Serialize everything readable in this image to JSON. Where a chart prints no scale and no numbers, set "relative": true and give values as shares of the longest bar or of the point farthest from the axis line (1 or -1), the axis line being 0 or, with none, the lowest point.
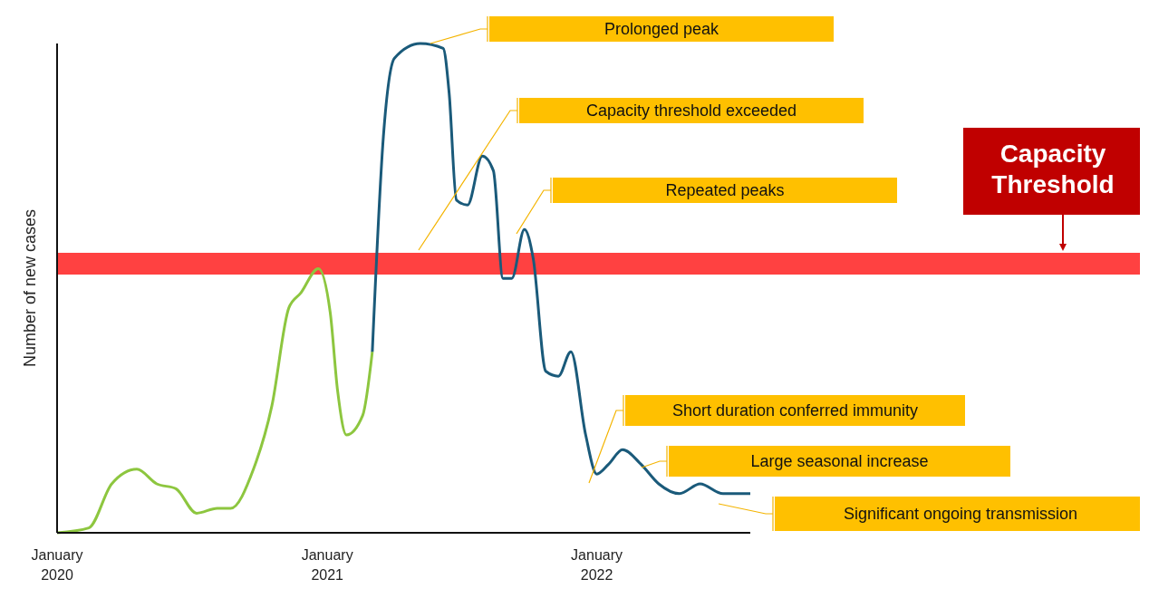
{
  "chart_data": {
    "type": "line",
    "relative": true,
    "ylabel": "Number of new cases",
    "xlim": [
      "2020-01-01",
      "2022-07-28"
    ],
    "xticks": [
      {
        "value": "2020-01-01",
        "label": "January 2020"
      },
      {
        "value": "2021-01-01",
        "label": "January 2021"
      },
      {
        "value": "2022-01-01",
        "label": "January 2022"
      }
    ],
    "series": [
      {
        "color": "#8dc63f",
        "x": [
          "2020-01-01",
          "2020-02-13",
          "2020-03-15",
          "2020-04-18",
          "2020-05-15",
          "2020-06-10",
          "2020-07-08",
          "2020-08-05",
          "2020-08-23",
          "2020-09-23",
          "2020-10-18",
          "2020-11-10",
          "2020-11-26",
          "2020-12-20",
          "2021-01-05",
          "2021-01-15",
          "2021-01-27",
          "2021-02-18",
          "2021-03-03"
        ],
        "values": [
          0,
          0.01,
          0.1,
          0.13,
          0.1,
          0.09,
          0.04,
          0.05,
          0.05,
          0.13,
          0.26,
          0.46,
          0.49,
          0.54,
          0.45,
          0.29,
          0.2,
          0.24,
          0.37
        ]
      },
      {
        "color": "#1a5a7a",
        "x": [
          "2021-03-03",
          "2021-03-18",
          "2021-04-02",
          "2021-05-07",
          "2021-06-07",
          "2021-06-15",
          "2021-06-25",
          "2021-07-10",
          "2021-07-30",
          "2021-08-14",
          "2021-08-27",
          "2021-09-08",
          "2021-09-25",
          "2021-10-07",
          "2021-10-24",
          "2021-11-10",
          "2021-11-27",
          "2021-12-17",
          "2022-01-01",
          "2022-01-17",
          "2022-02-05",
          "2022-03-02",
          "2022-03-26",
          "2022-04-23",
          "2022-05-21",
          "2022-06-21",
          "2022-07-28"
        ],
        "values": [
          0.37,
          0.81,
          0.97,
          1,
          0.99,
          0.9,
          0.68,
          0.67,
          0.77,
          0.74,
          0.52,
          0.52,
          0.62,
          0.56,
          0.33,
          0.32,
          0.37,
          0.2,
          0.12,
          0.14,
          0.17,
          0.14,
          0.1,
          0.08,
          0.1,
          0.08,
          0.08
        ]
      }
    ],
    "ref_lines": [
      {
        "axis": "y",
        "value": 0.55,
        "label": "Capacity Threshold",
        "color": "#ff2020"
      }
    ],
    "annotations": [
      "Prolonged peak",
      "Capacity threshold exceeded",
      "Repeated peaks",
      "Short duration conferred immunity",
      "Large seasonal increase",
      "Significant ongoing transmission"
    ]
  }
}
